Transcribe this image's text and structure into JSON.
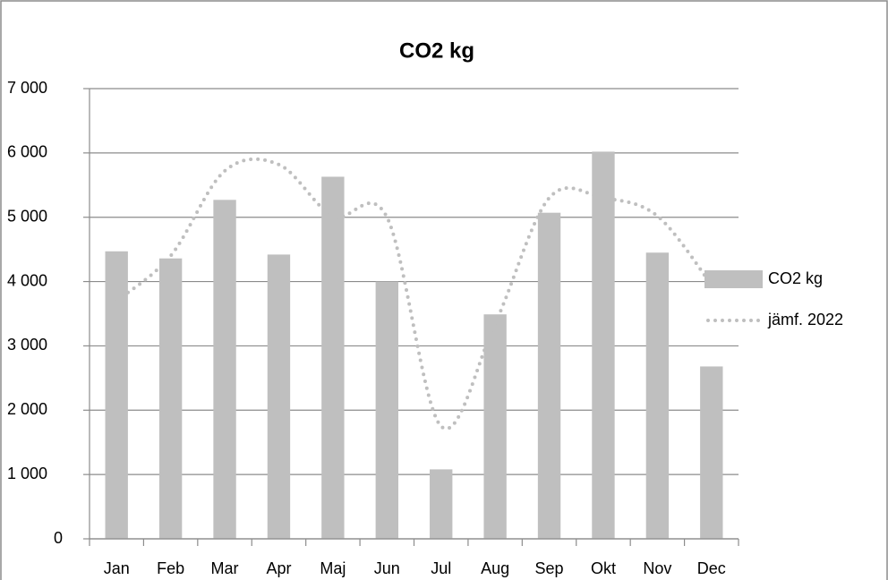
{
  "chart_data": {
    "type": "bar",
    "title": "CO2 kg",
    "categories": [
      "Jan",
      "Feb",
      "Mar",
      "Apr",
      "Maj",
      "Jun",
      "Jul",
      "Aug",
      "Sep",
      "Okt",
      "Nov",
      "Dec"
    ],
    "series": [
      {
        "name": "CO2 kg",
        "type": "bar",
        "color": "#bfbfbf",
        "values": [
          4470,
          4360,
          5270,
          4420,
          5630,
          4000,
          1080,
          3490,
          5070,
          6020,
          4450,
          2680
        ]
      },
      {
        "name": "jämf. 2022",
        "type": "line",
        "color": "#bfbfbf",
        "dotted": true,
        "values": [
          3700,
          4400,
          5720,
          5820,
          5020,
          5000,
          1750,
          3350,
          5300,
          5300,
          5020,
          3950
        ]
      }
    ],
    "ylim": [
      0,
      7000
    ],
    "yticks": [
      0,
      {
        "value": 1000,
        "label": "1 000"
      },
      {
        "value": 2000,
        "label": "2 000"
      },
      {
        "value": 3000,
        "label": "3 000"
      },
      {
        "value": 4000,
        "label": "4 000"
      },
      {
        "value": 5000,
        "label": "5 000"
      },
      {
        "value": 6000,
        "label": "6 000"
      },
      {
        "value": 7000,
        "label": "7 000"
      }
    ],
    "grid": true,
    "legend": "right"
  }
}
